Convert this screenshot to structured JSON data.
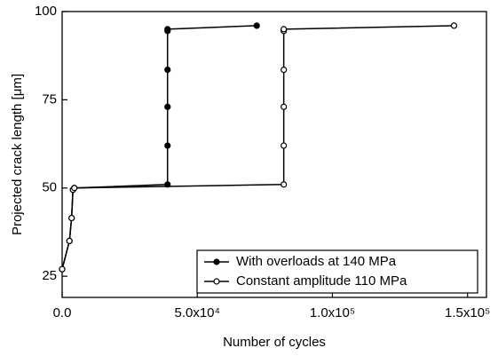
{
  "chart_data": {
    "type": "line",
    "x_label": "Number of cycles",
    "y_label": "Projected crack length [μm]",
    "xlim": [
      0,
      157000
    ],
    "ylim": [
      19,
      100
    ],
    "xticks": [
      {
        "value": 0,
        "label": "0.0"
      },
      {
        "value": 50000,
        "label": "5.0x10⁴"
      },
      {
        "value": 100000,
        "label": "1.0x10⁵"
      },
      {
        "value": 150000,
        "label": "1.5x10⁵"
      }
    ],
    "yticks": [
      25,
      50,
      75,
      100
    ],
    "legend": "lower right",
    "series": [
      {
        "name": "With overloads at 140 MPa",
        "color": "#000000",
        "marker": "filled",
        "x": [
          0,
          2700,
          3500,
          4000,
          4500,
          39000,
          39000,
          39000,
          39000,
          39000,
          39000,
          72000
        ],
        "values": [
          27,
          35,
          41.5,
          49.5,
          50,
          51,
          62,
          73,
          83.5,
          94.5,
          95,
          96
        ]
      },
      {
        "name": "Constant amplitude 110 MPa",
        "color": "#000000",
        "marker": "open",
        "x": [
          0,
          2700,
          3500,
          4000,
          4500,
          82000,
          82000,
          82000,
          82000,
          82000,
          82000,
          145000
        ],
        "values": [
          27,
          35,
          41.5,
          49.5,
          50,
          51,
          62,
          73,
          83.5,
          94.5,
          95,
          96
        ]
      }
    ]
  }
}
